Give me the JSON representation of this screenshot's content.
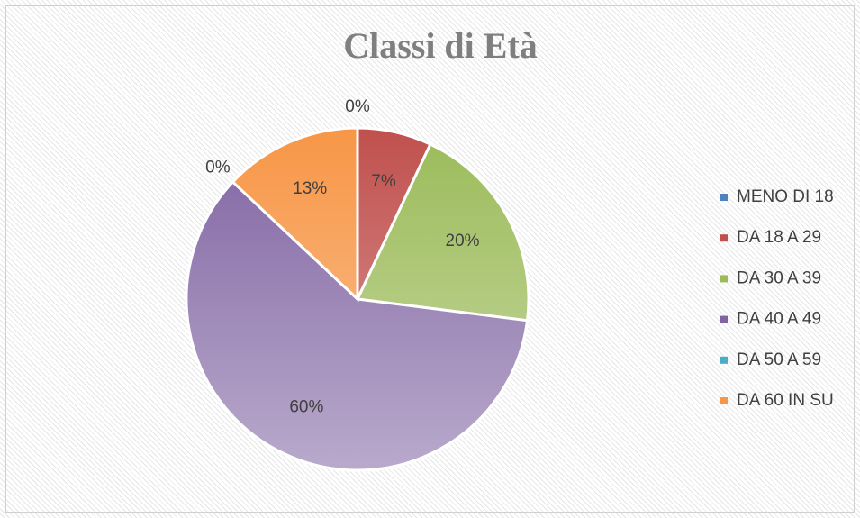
{
  "chart_data": {
    "type": "pie",
    "title": "Classi di Età",
    "categories": [
      "MENO DI 18",
      "DA 18 A 29",
      "DA 30 A 39",
      "DA 40 A 49",
      "DA 50 A 59",
      "DA 60 IN SU"
    ],
    "values": [
      0,
      7,
      20,
      60,
      0,
      13
    ],
    "value_labels": [
      "0%",
      "7%",
      "20%",
      "60%",
      "0%",
      "13%"
    ],
    "colors": [
      "#4f81bd",
      "#c0504d",
      "#9bbb59",
      "#8064a2",
      "#4bacc6",
      "#f79646"
    ],
    "legend": "right"
  }
}
